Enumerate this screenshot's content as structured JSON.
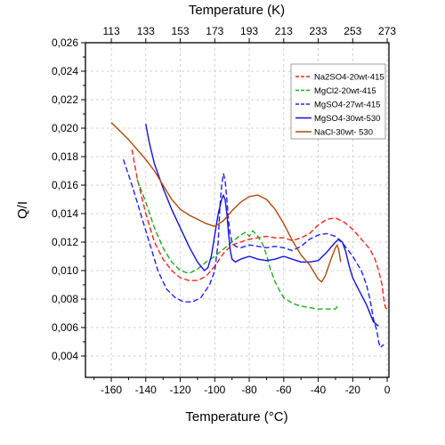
{
  "chart_data": {
    "type": "line",
    "xlabel": "Temperature (°C)",
    "x2label": "Temperature (K)",
    "ylabel": "Q/I",
    "xlim": [
      -175,
      1
    ],
    "ylim": [
      0.0025,
      0.026
    ],
    "x_ticks": [
      -160,
      -140,
      -120,
      -100,
      -80,
      -60,
      -40,
      -20,
      0
    ],
    "x_tick_labels": [
      "-160",
      "-140",
      "-120",
      "-100",
      "-80",
      "-60",
      "-40",
      "-20",
      "0"
    ],
    "x2_ticks": [
      -160,
      -140,
      -120,
      -100,
      -80,
      -60,
      -40,
      -20,
      0
    ],
    "x2_tick_labels": [
      "113",
      "133",
      "153",
      "173",
      "193",
      "213",
      "233",
      "253",
      "273"
    ],
    "y_ticks": [
      0.004,
      0.006,
      0.008,
      0.01,
      0.012,
      0.014,
      0.016,
      0.018,
      0.02,
      0.022,
      0.024,
      0.026
    ],
    "y_tick_labels": [
      "0,004",
      "0,006",
      "0,008",
      "0,010",
      "0,012",
      "0,014",
      "0,016",
      "0,018",
      "0,020",
      "0,022",
      "0,024",
      "0,026"
    ],
    "grid": true,
    "legend_position": "top-right",
    "series": [
      {
        "name": "Na2SO4-20wt-415",
        "color": "#ff2020",
        "dash": "dashed",
        "points": [
          [
            -148,
            0.0185
          ],
          [
            -145,
            0.0165
          ],
          [
            -140,
            0.014
          ],
          [
            -135,
            0.012
          ],
          [
            -130,
            0.0108
          ],
          [
            -125,
            0.01
          ],
          [
            -120,
            0.0095
          ],
          [
            -115,
            0.0093
          ],
          [
            -110,
            0.0093
          ],
          [
            -105,
            0.0096
          ],
          [
            -100,
            0.0103
          ],
          [
            -95,
            0.0112
          ],
          [
            -90,
            0.0118
          ],
          [
            -85,
            0.012
          ],
          [
            -80,
            0.0122
          ],
          [
            -75,
            0.0123
          ],
          [
            -70,
            0.0124
          ],
          [
            -65,
            0.0123
          ],
          [
            -60,
            0.0123
          ],
          [
            -55,
            0.0121
          ],
          [
            -50,
            0.0123
          ],
          [
            -45,
            0.0126
          ],
          [
            -40,
            0.0132
          ],
          [
            -35,
            0.0136
          ],
          [
            -30,
            0.0137
          ],
          [
            -25,
            0.0134
          ],
          [
            -20,
            0.0129
          ],
          [
            -15,
            0.0122
          ],
          [
            -10,
            0.0115
          ],
          [
            -7,
            0.0108
          ],
          [
            -5,
            0.01
          ],
          [
            -3,
            0.009
          ],
          [
            -2,
            0.008
          ],
          [
            -1,
            0.0074
          ],
          [
            0,
            0.0073
          ]
        ]
      },
      {
        "name": "MgCl2-20wt-415",
        "color": "#1faa1f",
        "dash": "dashed",
        "points": [
          [
            -145,
            0.0164
          ],
          [
            -140,
            0.0148
          ],
          [
            -135,
            0.013
          ],
          [
            -130,
            0.0116
          ],
          [
            -125,
            0.0106
          ],
          [
            -120,
            0.01
          ],
          [
            -115,
            0.0098
          ],
          [
            -110,
            0.0101
          ],
          [
            -105,
            0.0106
          ],
          [
            -100,
            0.011
          ],
          [
            -95,
            0.0115
          ],
          [
            -90,
            0.012
          ],
          [
            -85,
            0.0125
          ],
          [
            -82,
            0.0127
          ],
          [
            -80,
            0.0124
          ],
          [
            -78,
            0.0128
          ],
          [
            -75,
            0.0124
          ],
          [
            -72,
            0.0118
          ],
          [
            -70,
            0.0111
          ],
          [
            -68,
            0.0102
          ],
          [
            -65,
            0.0092
          ],
          [
            -62,
            0.0085
          ],
          [
            -60,
            0.0081
          ],
          [
            -55,
            0.0077
          ],
          [
            -50,
            0.0075
          ],
          [
            -45,
            0.0074
          ],
          [
            -40,
            0.0073
          ],
          [
            -35,
            0.0073
          ],
          [
            -30,
            0.0073
          ],
          [
            -28,
            0.0076
          ]
        ]
      },
      {
        "name": "MgSO4-27wt-415",
        "color": "#2020ff",
        "dash": "dashed",
        "points": [
          [
            -153,
            0.0178
          ],
          [
            -148,
            0.016
          ],
          [
            -143,
            0.014
          ],
          [
            -138,
            0.012
          ],
          [
            -133,
            0.01
          ],
          [
            -128,
            0.0087
          ],
          [
            -123,
            0.0081
          ],
          [
            -118,
            0.0078
          ],
          [
            -113,
            0.0078
          ],
          [
            -108,
            0.0081
          ],
          [
            -103,
            0.009
          ],
          [
            -100,
            0.01
          ],
          [
            -98,
            0.012
          ],
          [
            -97,
            0.0145
          ],
          [
            -96,
            0.016
          ],
          [
            -95,
            0.0168
          ],
          [
            -94,
            0.0164
          ],
          [
            -93,
            0.015
          ],
          [
            -92,
            0.0135
          ],
          [
            -91,
            0.0125
          ],
          [
            -90,
            0.012
          ],
          [
            -88,
            0.0117
          ],
          [
            -85,
            0.0116
          ],
          [
            -80,
            0.0118
          ],
          [
            -75,
            0.0117
          ],
          [
            -70,
            0.0116
          ],
          [
            -65,
            0.0117
          ],
          [
            -60,
            0.0116
          ],
          [
            -55,
            0.0114
          ],
          [
            -50,
            0.0117
          ],
          [
            -45,
            0.0122
          ],
          [
            -40,
            0.0125
          ],
          [
            -35,
            0.0126
          ],
          [
            -30,
            0.0124
          ],
          [
            -25,
            0.0118
          ],
          [
            -20,
            0.011
          ],
          [
            -15,
            0.01
          ],
          [
            -12,
            0.009
          ],
          [
            -10,
            0.008
          ],
          [
            -8,
            0.0066
          ],
          [
            -6,
            0.0058
          ],
          [
            -5,
            0.005
          ],
          [
            -4,
            0.0046
          ],
          [
            -3,
            0.0047
          ],
          [
            -2,
            0.0048
          ]
        ]
      },
      {
        "name": "MgSO4-30wt-530",
        "color": "#1010e0",
        "dash": "solid",
        "points": [
          [
            -140,
            0.0203
          ],
          [
            -138,
            0.019
          ],
          [
            -135,
            0.0175
          ],
          [
            -130,
            0.0158
          ],
          [
            -125,
            0.0143
          ],
          [
            -120,
            0.013
          ],
          [
            -115,
            0.0117
          ],
          [
            -110,
            0.0106
          ],
          [
            -106,
            0.01
          ],
          [
            -104,
            0.0102
          ],
          [
            -102,
            0.011
          ],
          [
            -100,
            0.0125
          ],
          [
            -98,
            0.014
          ],
          [
            -96,
            0.015
          ],
          [
            -95,
            0.0153
          ],
          [
            -94,
            0.015
          ],
          [
            -93,
            0.014
          ],
          [
            -92,
            0.0126
          ],
          [
            -91,
            0.0114
          ],
          [
            -90,
            0.0108
          ],
          [
            -88,
            0.0106
          ],
          [
            -85,
            0.0108
          ],
          [
            -80,
            0.011
          ],
          [
            -75,
            0.0108
          ],
          [
            -70,
            0.0107
          ],
          [
            -65,
            0.0108
          ],
          [
            -60,
            0.011
          ],
          [
            -55,
            0.0108
          ],
          [
            -50,
            0.0106
          ],
          [
            -45,
            0.0106
          ],
          [
            -40,
            0.0107
          ],
          [
            -35,
            0.0113
          ],
          [
            -30,
            0.012
          ],
          [
            -28,
            0.0122
          ],
          [
            -26,
            0.012
          ],
          [
            -24,
            0.0113
          ],
          [
            -22,
            0.0103
          ],
          [
            -20,
            0.0095
          ],
          [
            -18,
            0.009
          ],
          [
            -15,
            0.0083
          ],
          [
            -12,
            0.0076
          ],
          [
            -10,
            0.007
          ],
          [
            -8,
            0.0064
          ],
          [
            -6,
            0.0062
          ],
          [
            -5,
            0.0061
          ]
        ]
      },
      {
        "name": "NaCl-30wt- 530",
        "color": "#b04a0a",
        "dash": "solid",
        "points": [
          [
            -160,
            0.0204
          ],
          [
            -155,
            0.0198
          ],
          [
            -150,
            0.0192
          ],
          [
            -145,
            0.0185
          ],
          [
            -140,
            0.0178
          ],
          [
            -135,
            0.017
          ],
          [
            -130,
            0.016
          ],
          [
            -125,
            0.015
          ],
          [
            -120,
            0.0143
          ],
          [
            -115,
            0.0139
          ],
          [
            -110,
            0.0136
          ],
          [
            -105,
            0.0133
          ],
          [
            -100,
            0.0131
          ],
          [
            -95,
            0.0135
          ],
          [
            -90,
            0.0142
          ],
          [
            -85,
            0.0148
          ],
          [
            -80,
            0.0152
          ],
          [
            -75,
            0.0153
          ],
          [
            -70,
            0.015
          ],
          [
            -65,
            0.0143
          ],
          [
            -60,
            0.0133
          ],
          [
            -55,
            0.0121
          ],
          [
            -50,
            0.0111
          ],
          [
            -45,
            0.0104
          ],
          [
            -42,
            0.0098
          ],
          [
            -40,
            0.0094
          ],
          [
            -38,
            0.0092
          ],
          [
            -36,
            0.0096
          ],
          [
            -34,
            0.0103
          ],
          [
            -32,
            0.011
          ],
          [
            -30,
            0.0116
          ],
          [
            -29,
            0.0118
          ],
          [
            -28,
            0.0114
          ],
          [
            -27,
            0.0106
          ]
        ]
      }
    ]
  }
}
